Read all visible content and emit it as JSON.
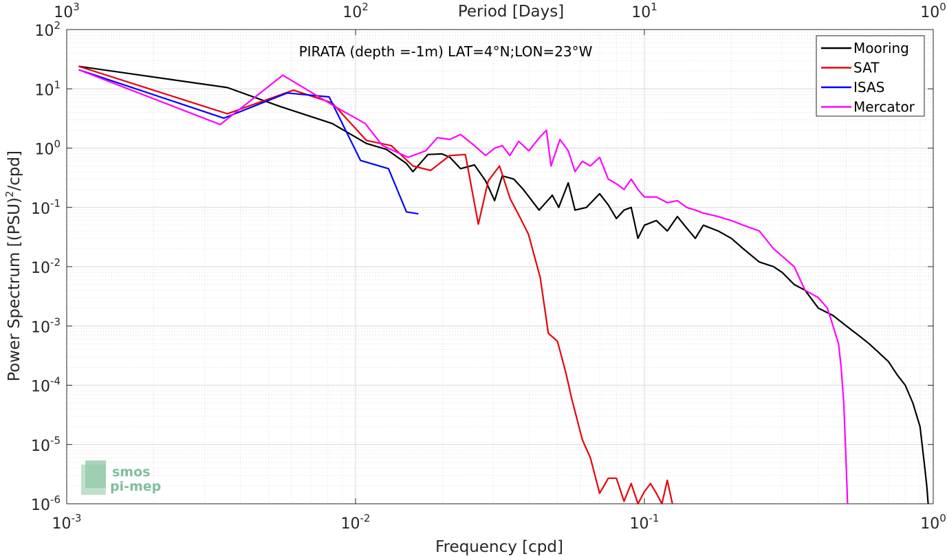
{
  "chart_data": {
    "type": "line",
    "title": "PIRATA (depth =-1m) LAT=4°N;LON=23°W",
    "xlabel": "Frequency [cpd]",
    "ylabel": "Power Spectrum [(PSU)",
    "ylabel_sup": "2",
    "ylabel_tail": "/cpd]",
    "top_xlabel": "Period [Days]",
    "x_scale": "log",
    "y_scale": "log",
    "xlim": [
      0.001,
      1
    ],
    "ylim": [
      1e-06,
      100
    ],
    "grid": true,
    "legend_position": "top-right",
    "x_ticks": [
      {
        "value": 0.001,
        "base": "10",
        "exp": "-3"
      },
      {
        "value": 0.01,
        "base": "10",
        "exp": "-2"
      },
      {
        "value": 0.1,
        "base": "10",
        "exp": "-1"
      },
      {
        "value": 1,
        "base": "10",
        "exp": "0"
      }
    ],
    "top_ticks": [
      {
        "value": 0.001,
        "base": "10",
        "exp": "3"
      },
      {
        "value": 0.01,
        "base": "10",
        "exp": "2"
      },
      {
        "value": 0.1,
        "base": "10",
        "exp": "1"
      },
      {
        "value": 1,
        "base": "10",
        "exp": "0"
      }
    ],
    "y_ticks": [
      {
        "value": 100,
        "base": "10",
        "exp": "2"
      },
      {
        "value": 10,
        "base": "10",
        "exp": "1"
      },
      {
        "value": 1,
        "base": "10",
        "exp": "0"
      },
      {
        "value": 0.1,
        "base": "10",
        "exp": "-1"
      },
      {
        "value": 0.01,
        "base": "10",
        "exp": "-2"
      },
      {
        "value": 0.001,
        "base": "10",
        "exp": "-3"
      },
      {
        "value": 0.0001,
        "base": "10",
        "exp": "-4"
      },
      {
        "value": 1e-05,
        "base": "10",
        "exp": "-5"
      },
      {
        "value": 1e-06,
        "base": "10",
        "exp": "-6"
      }
    ],
    "series": [
      {
        "name": "Mooring",
        "color": "#000000",
        "points": [
          [
            0.0011,
            24
          ],
          [
            0.0036,
            10.5
          ],
          [
            0.0055,
            5
          ],
          [
            0.0083,
            2.6
          ],
          [
            0.0109,
            1.2
          ],
          [
            0.0128,
            0.95
          ],
          [
            0.015,
            0.55
          ],
          [
            0.0158,
            0.4
          ],
          [
            0.0178,
            0.78
          ],
          [
            0.0199,
            0.8
          ],
          [
            0.0212,
            0.7
          ],
          [
            0.0231,
            0.45
          ],
          [
            0.0258,
            0.52
          ],
          [
            0.0282,
            0.28
          ],
          [
            0.0303,
            0.13
          ],
          [
            0.0322,
            0.34
          ],
          [
            0.0353,
            0.3
          ],
          [
            0.0381,
            0.2
          ],
          [
            0.0432,
            0.09
          ],
          [
            0.048,
            0.16
          ],
          [
            0.0505,
            0.1
          ],
          [
            0.0545,
            0.26
          ],
          [
            0.0575,
            0.09
          ],
          [
            0.063,
            0.1
          ],
          [
            0.07,
            0.17
          ],
          [
            0.075,
            0.11
          ],
          [
            0.08,
            0.065
          ],
          [
            0.085,
            0.09
          ],
          [
            0.09,
            0.1
          ],
          [
            0.095,
            0.03
          ],
          [
            0.1,
            0.05
          ],
          [
            0.11,
            0.06
          ],
          [
            0.12,
            0.04
          ],
          [
            0.13,
            0.07
          ],
          [
            0.14,
            0.045
          ],
          [
            0.15,
            0.03
          ],
          [
            0.16,
            0.05
          ],
          [
            0.18,
            0.04
          ],
          [
            0.2,
            0.03
          ],
          [
            0.22,
            0.02
          ],
          [
            0.25,
            0.012
          ],
          [
            0.28,
            0.01
          ],
          [
            0.3,
            0.008
          ],
          [
            0.33,
            0.005
          ],
          [
            0.36,
            0.004
          ],
          [
            0.4,
            0.002
          ],
          [
            0.45,
            0.0015
          ],
          [
            0.5,
            0.001
          ],
          [
            0.55,
            0.0007
          ],
          [
            0.6,
            0.0005
          ],
          [
            0.65,
            0.00035
          ],
          [
            0.7,
            0.00025
          ],
          [
            0.75,
            0.00015
          ],
          [
            0.8,
            0.0001
          ],
          [
            0.85,
            5e-05
          ],
          [
            0.9,
            2e-05
          ],
          [
            0.93,
            5e-06
          ],
          [
            0.95,
            2e-06
          ],
          [
            0.96,
            1e-06
          ]
        ]
      },
      {
        "name": "SAT",
        "color": "#e8000b",
        "points": [
          [
            0.0011,
            24
          ],
          [
            0.0036,
            3.8
          ],
          [
            0.0061,
            9.5
          ],
          [
            0.0083,
            5.8
          ],
          [
            0.0109,
            1.35
          ],
          [
            0.0133,
            1.1
          ],
          [
            0.0158,
            0.5
          ],
          [
            0.0182,
            0.42
          ],
          [
            0.0212,
            0.75
          ],
          [
            0.024,
            0.78
          ],
          [
            0.0266,
            0.052
          ],
          [
            0.0288,
            0.28
          ],
          [
            0.0315,
            0.5
          ],
          [
            0.0343,
            0.14
          ],
          [
            0.0368,
            0.073
          ],
          [
            0.0397,
            0.035
          ],
          [
            0.0436,
            0.0065
          ],
          [
            0.0465,
            0.00075
          ],
          [
            0.05,
            0.00055
          ],
          [
            0.0535,
            0.00016
          ],
          [
            0.056,
            6e-05
          ],
          [
            0.061,
            1.2e-05
          ],
          [
            0.065,
            6e-06
          ],
          [
            0.07,
            1.5e-06
          ],
          [
            0.075,
            2.7e-06
          ],
          [
            0.08,
            2.7e-06
          ],
          [
            0.085,
            1.1e-06
          ],
          [
            0.09,
            2.2e-06
          ],
          [
            0.095,
            1e-06
          ],
          [
            0.1,
            1.6e-06
          ],
          [
            0.105,
            2.2e-06
          ],
          [
            0.11,
            1.5e-06
          ],
          [
            0.115,
            1e-06
          ],
          [
            0.12,
            2.5e-06
          ],
          [
            0.125,
            1e-06
          ]
        ]
      },
      {
        "name": "ISAS",
        "color": "#0000ff",
        "points": [
          [
            0.0011,
            21
          ],
          [
            0.0035,
            3.2
          ],
          [
            0.0058,
            8.5
          ],
          [
            0.0081,
            7.3
          ],
          [
            0.0104,
            0.62
          ],
          [
            0.013,
            0.45
          ],
          [
            0.015,
            0.084
          ],
          [
            0.0165,
            0.078
          ]
        ]
      },
      {
        "name": "Mercator",
        "color": "#ff00ff",
        "points": [
          [
            0.0011,
            21
          ],
          [
            0.0034,
            2.5
          ],
          [
            0.0056,
            17
          ],
          [
            0.0085,
            5
          ],
          [
            0.0108,
            2.6
          ],
          [
            0.0124,
            1.1
          ],
          [
            0.0152,
            0.7
          ],
          [
            0.0175,
            0.9
          ],
          [
            0.0192,
            1.5
          ],
          [
            0.0212,
            1.4
          ],
          [
            0.0231,
            1.7
          ],
          [
            0.0258,
            1.1
          ],
          [
            0.0282,
            0.75
          ],
          [
            0.0303,
            1.0
          ],
          [
            0.0322,
            1.1
          ],
          [
            0.0342,
            0.75
          ],
          [
            0.0367,
            1.3
          ],
          [
            0.0398,
            0.9
          ],
          [
            0.0433,
            1.5
          ],
          [
            0.0458,
            2.0
          ],
          [
            0.0475,
            0.5
          ],
          [
            0.051,
            1.4
          ],
          [
            0.0545,
            0.9
          ],
          [
            0.0575,
            0.4
          ],
          [
            0.061,
            0.6
          ],
          [
            0.065,
            0.5
          ],
          [
            0.07,
            0.7
          ],
          [
            0.075,
            0.3
          ],
          [
            0.08,
            0.25
          ],
          [
            0.085,
            0.2
          ],
          [
            0.09,
            0.3
          ],
          [
            0.095,
            0.2
          ],
          [
            0.1,
            0.15
          ],
          [
            0.11,
            0.15
          ],
          [
            0.12,
            0.12
          ],
          [
            0.13,
            0.13
          ],
          [
            0.14,
            0.1
          ],
          [
            0.15,
            0.09
          ],
          [
            0.16,
            0.08
          ],
          [
            0.18,
            0.07
          ],
          [
            0.2,
            0.06
          ],
          [
            0.22,
            0.05
          ],
          [
            0.25,
            0.04
          ],
          [
            0.28,
            0.02
          ],
          [
            0.3,
            0.015
          ],
          [
            0.33,
            0.01
          ],
          [
            0.36,
            0.004
          ],
          [
            0.4,
            0.003
          ],
          [
            0.43,
            0.002
          ],
          [
            0.45,
            0.001
          ],
          [
            0.47,
            0.0005
          ],
          [
            0.48,
            0.0002
          ],
          [
            0.49,
            5e-05
          ],
          [
            0.5,
            4e-06
          ],
          [
            0.505,
            1e-06
          ]
        ]
      }
    ]
  },
  "logo": {
    "line1": "smos",
    "line2": "pi-mep"
  }
}
